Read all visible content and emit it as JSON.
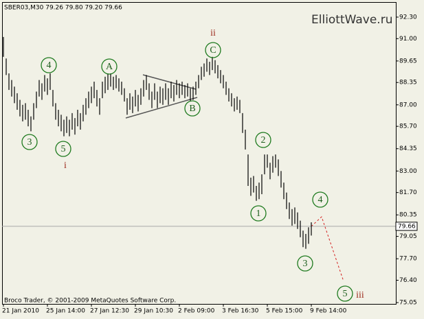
{
  "chart_data": {
    "type": "ohlc",
    "header": "SBER03,M30  79.26 79.80 79.20 79.66",
    "watermark": "ElliottWave.ru",
    "footer": "Broco Trader, © 2001-2009 MetaQuotes Software Corp.",
    "color": "#000000",
    "categories": [
      "21 Jan 2010",
      null,
      null,
      null,
      null,
      null,
      null,
      null,
      null,
      null,
      null,
      null,
      null,
      null,
      null,
      null,
      "25 Jan 14:00",
      null,
      null,
      null,
      null,
      null,
      null,
      null,
      null,
      null,
      null,
      null,
      null,
      null,
      null,
      null,
      "27 Jan 12:30",
      null,
      null,
      null,
      null,
      null,
      null,
      null,
      null,
      null,
      null,
      null,
      null,
      null,
      null,
      null,
      "29 Jan 10:30",
      null,
      null,
      null,
      null,
      null,
      null,
      null,
      null,
      null,
      null,
      null,
      null,
      null,
      null,
      null,
      "2 Feb 09:00",
      null,
      null,
      null,
      null,
      null,
      null,
      null,
      null,
      null,
      null,
      null,
      null,
      null,
      null,
      null,
      "3 Feb 16:30",
      null,
      null,
      null,
      null,
      null,
      null,
      null,
      null,
      null,
      null,
      null,
      null,
      null,
      null,
      null,
      "5 Feb 15:00",
      null,
      null,
      null,
      null,
      null,
      null,
      null,
      null,
      null,
      null,
      null,
      null,
      null,
      null,
      null,
      "9 Feb 14:00"
    ],
    "high": [
      91.1,
      89.8,
      88.9,
      88.5,
      88.1,
      87.7,
      87.3,
      87.0,
      87.1,
      86.7,
      86.3,
      87.1,
      87.8,
      88.5,
      88.3,
      88.8,
      88.6,
      88.9,
      87.9,
      87.1,
      86.7,
      86.4,
      86.1,
      86.3,
      86.1,
      86.5,
      86.2,
      86.7,
      86.5,
      87.0,
      87.4,
      87.8,
      88.1,
      88.4,
      87.9,
      87.4,
      88.4,
      88.7,
      88.9,
      88.9,
      88.7,
      88.8,
      88.6,
      88.4,
      88.0,
      87.4,
      87.7,
      87.5,
      87.9,
      87.6,
      88.0,
      88.5,
      88.8,
      88.3,
      87.8,
      88.3,
      87.8,
      88.1,
      88.0,
      88.3,
      88.0,
      88.4,
      88.2,
      88.5,
      88.3,
      88.4,
      88.2,
      88.3,
      88.0,
      88.1,
      88.4,
      88.8,
      89.3,
      89.5,
      89.8,
      89.6,
      89.9,
      89.7,
      89.4,
      89.1,
      88.8,
      88.4,
      88.0,
      87.7,
      87.4,
      87.5,
      87.3,
      86.5,
      85.5,
      84.0,
      82.6,
      82.7,
      82.1,
      82.3,
      82.8,
      84.0,
      84.0,
      83.5,
      83.9,
      84.0,
      83.7,
      83.0,
      82.3,
      81.7,
      81.1,
      80.7,
      80.8,
      80.5,
      80.0,
      79.4,
      79.2,
      79.6,
      79.9
    ],
    "low": [
      89.9,
      88.8,
      87.9,
      87.5,
      87.1,
      86.7,
      86.3,
      86.0,
      86.1,
      85.7,
      85.4,
      86.1,
      86.8,
      87.5,
      87.3,
      87.8,
      87.6,
      87.9,
      86.9,
      86.1,
      85.7,
      85.4,
      85.1,
      85.3,
      85.1,
      85.5,
      85.2,
      85.7,
      85.5,
      86.0,
      86.4,
      86.8,
      87.1,
      87.4,
      86.9,
      86.4,
      87.4,
      87.7,
      87.9,
      88.1,
      87.9,
      88.0,
      87.8,
      87.6,
      87.2,
      86.4,
      86.7,
      86.5,
      86.9,
      86.6,
      87.0,
      87.5,
      87.9,
      87.3,
      86.8,
      87.3,
      86.8,
      87.1,
      87.0,
      87.3,
      87.0,
      87.4,
      87.2,
      87.6,
      87.4,
      87.6,
      87.4,
      87.5,
      87.2,
      87.3,
      87.6,
      88.0,
      88.5,
      88.7,
      89.0,
      88.8,
      89.1,
      88.9,
      88.6,
      88.3,
      88.0,
      87.6,
      87.2,
      86.9,
      86.6,
      86.7,
      86.5,
      85.3,
      84.3,
      82.1,
      81.5,
      81.7,
      81.2,
      81.3,
      81.6,
      82.8,
      83.2,
      82.5,
      82.9,
      83.2,
      82.7,
      82.0,
      81.3,
      80.7,
      80.1,
      79.7,
      79.8,
      79.5,
      79.0,
      78.4,
      78.3,
      78.6,
      79.1
    ],
    "last_price": 79.66,
    "ylim": [
      74.97,
      93.21
    ],
    "yticks": [
      {
        "value": 92.3,
        "label": "92.30"
      },
      {
        "value": 91,
        "label": "91.00"
      },
      {
        "value": 89.65,
        "label": "89.65"
      },
      {
        "value": 88.35,
        "label": "88.35"
      },
      {
        "value": 87,
        "label": "87.00"
      },
      {
        "value": 85.7,
        "label": "85.70"
      },
      {
        "value": 84.35,
        "label": "84.35"
      },
      {
        "value": 83,
        "label": "83.00"
      },
      {
        "value": 81.7,
        "label": "81.70"
      },
      {
        "value": 80.35,
        "label": "80.35"
      },
      {
        "value": 79.05,
        "label": "79.05"
      },
      {
        "value": 77.7,
        "label": "77.70"
      },
      {
        "value": 76.4,
        "label": "76.40"
      },
      {
        "value": 75.05,
        "label": "75.05"
      }
    ],
    "wave_labels": [
      "3",
      "4",
      "5",
      "i",
      "A",
      "B",
      "ii",
      "C",
      "2",
      "1",
      "4",
      "3",
      "5",
      "iii"
    ]
  }
}
